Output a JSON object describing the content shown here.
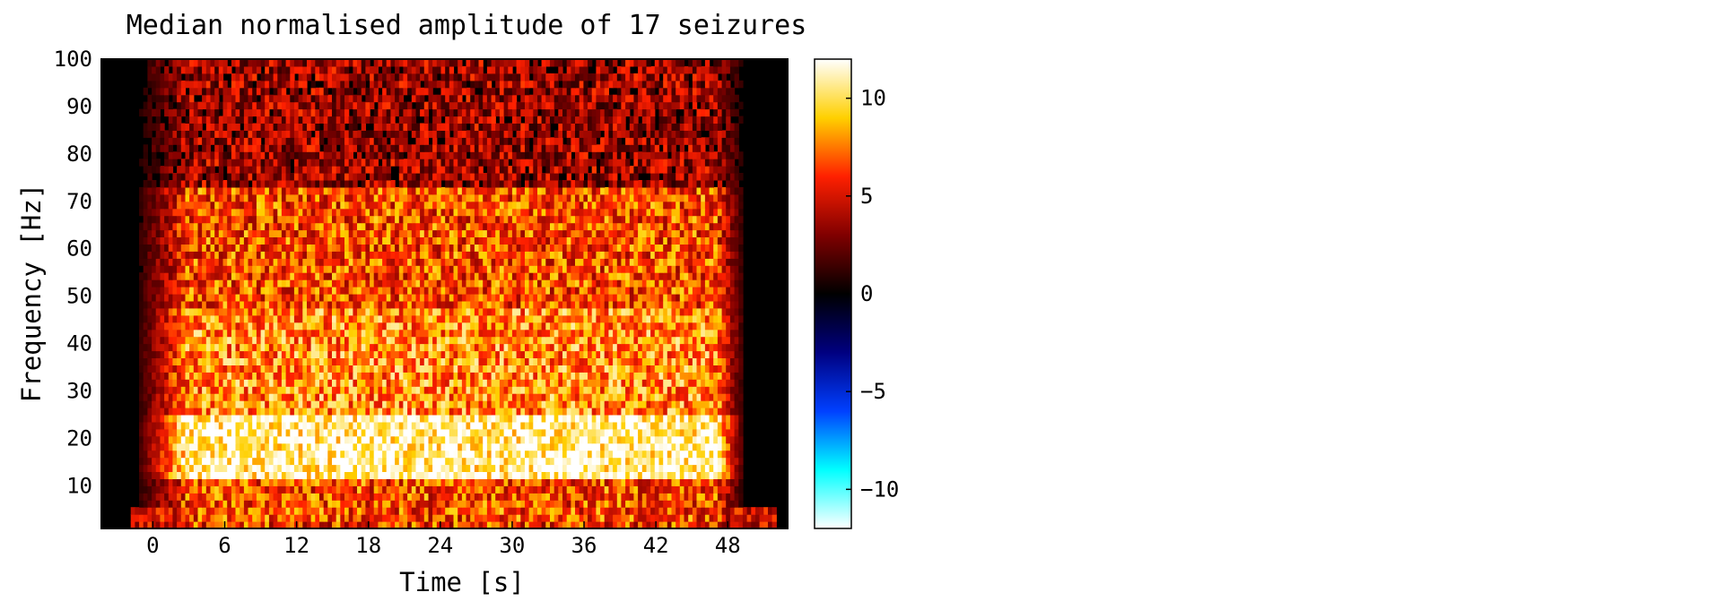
{
  "chart_data": {
    "type": "heatmap",
    "title": "Median normalised amplitude of 17 seizures",
    "xlabel": "Time [s]",
    "ylabel": "Frequency [Hz]",
    "xlim": [
      -4.3,
      53
    ],
    "ylim": [
      1,
      100
    ],
    "xticks": [
      0,
      6,
      12,
      18,
      24,
      30,
      36,
      42,
      48
    ],
    "xtick_labels": [
      "0",
      "6",
      "12",
      "18",
      "24",
      "30",
      "36",
      "42",
      "48"
    ],
    "yticks": [
      10,
      20,
      30,
      40,
      50,
      60,
      70,
      80,
      90,
      100
    ],
    "ytick_labels": [
      "10",
      "20",
      "30",
      "40",
      "50",
      "60",
      "70",
      "80",
      "90",
      "100"
    ],
    "seizure_interval_s": [
      0,
      48
    ],
    "grid": false,
    "colorbar": {
      "limits": [
        -12,
        12
      ],
      "ticks": [
        10,
        5,
        0,
        -5,
        -10
      ],
      "tick_labels": [
        "10",
        "5",
        "0",
        "−5",
        "−10"
      ],
      "colormap": [
        {
          "v": -12,
          "color": "#ffffff"
        },
        {
          "v": -9,
          "color": "#00ffff"
        },
        {
          "v": -6,
          "color": "#0040ff"
        },
        {
          "v": -3,
          "color": "#000080"
        },
        {
          "v": 0,
          "color": "#000000"
        },
        {
          "v": 3,
          "color": "#800000"
        },
        {
          "v": 6,
          "color": "#ff2000"
        },
        {
          "v": 9,
          "color": "#ffd000"
        },
        {
          "v": 12,
          "color": "#ffffff"
        }
      ]
    },
    "bands": [
      {
        "freq_hz": [
          1,
          3
        ],
        "median_amplitude": 6
      },
      {
        "freq_hz": [
          3,
          12
        ],
        "median_amplitude": 6.5
      },
      {
        "freq_hz": [
          12,
          25
        ],
        "median_amplitude": 11
      },
      {
        "freq_hz": [
          25,
          47
        ],
        "median_amplitude": 8
      },
      {
        "freq_hz": [
          47,
          73
        ],
        "median_amplitude": 6.5
      },
      {
        "freq_hz": [
          73,
          100
        ],
        "median_amplitude": 3.5
      }
    ],
    "baseline_amplitude": 0.5
  }
}
